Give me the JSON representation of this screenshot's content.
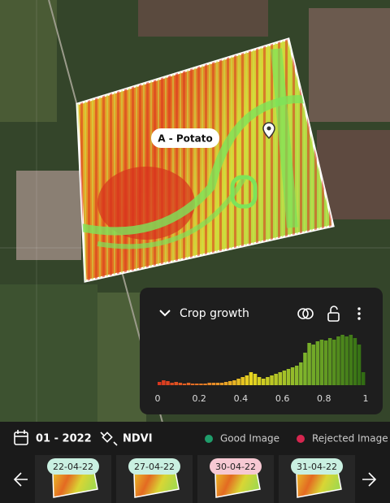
{
  "field": {
    "label": "A - Potato"
  },
  "panel": {
    "title": "Crop growth",
    "histogram": {
      "xlim": [
        0,
        1
      ],
      "xticks": [
        0,
        0.2,
        0.4,
        0.6,
        0.8,
        1
      ],
      "counts": [
        4,
        6,
        5,
        3,
        4,
        3,
        2,
        3,
        2,
        2,
        2,
        2,
        3,
        3,
        3,
        3,
        4,
        5,
        6,
        8,
        10,
        12,
        16,
        14,
        10,
        8,
        10,
        12,
        14,
        16,
        18,
        20,
        22,
        24,
        28,
        40,
        52,
        50,
        54,
        56,
        55,
        58,
        56,
        60,
        62,
        60,
        62,
        58,
        50,
        16
      ]
    }
  },
  "toolbar": {
    "period": "01 - 2022",
    "index": "NDVI",
    "legend": [
      {
        "label": "Good Image",
        "color": "#1f9d6b"
      },
      {
        "label": "Rejected Image",
        "color": "#d6264f"
      }
    ]
  },
  "images": [
    {
      "date": "22-04-22",
      "pill_color": "#c9f0e1"
    },
    {
      "date": "27-04-22",
      "pill_color": "#c9f0e1"
    },
    {
      "date": "30-04-22",
      "pill_color": "#f7c9d3"
    },
    {
      "date": "31-04-22",
      "pill_color": "#c9f0e1"
    }
  ]
}
